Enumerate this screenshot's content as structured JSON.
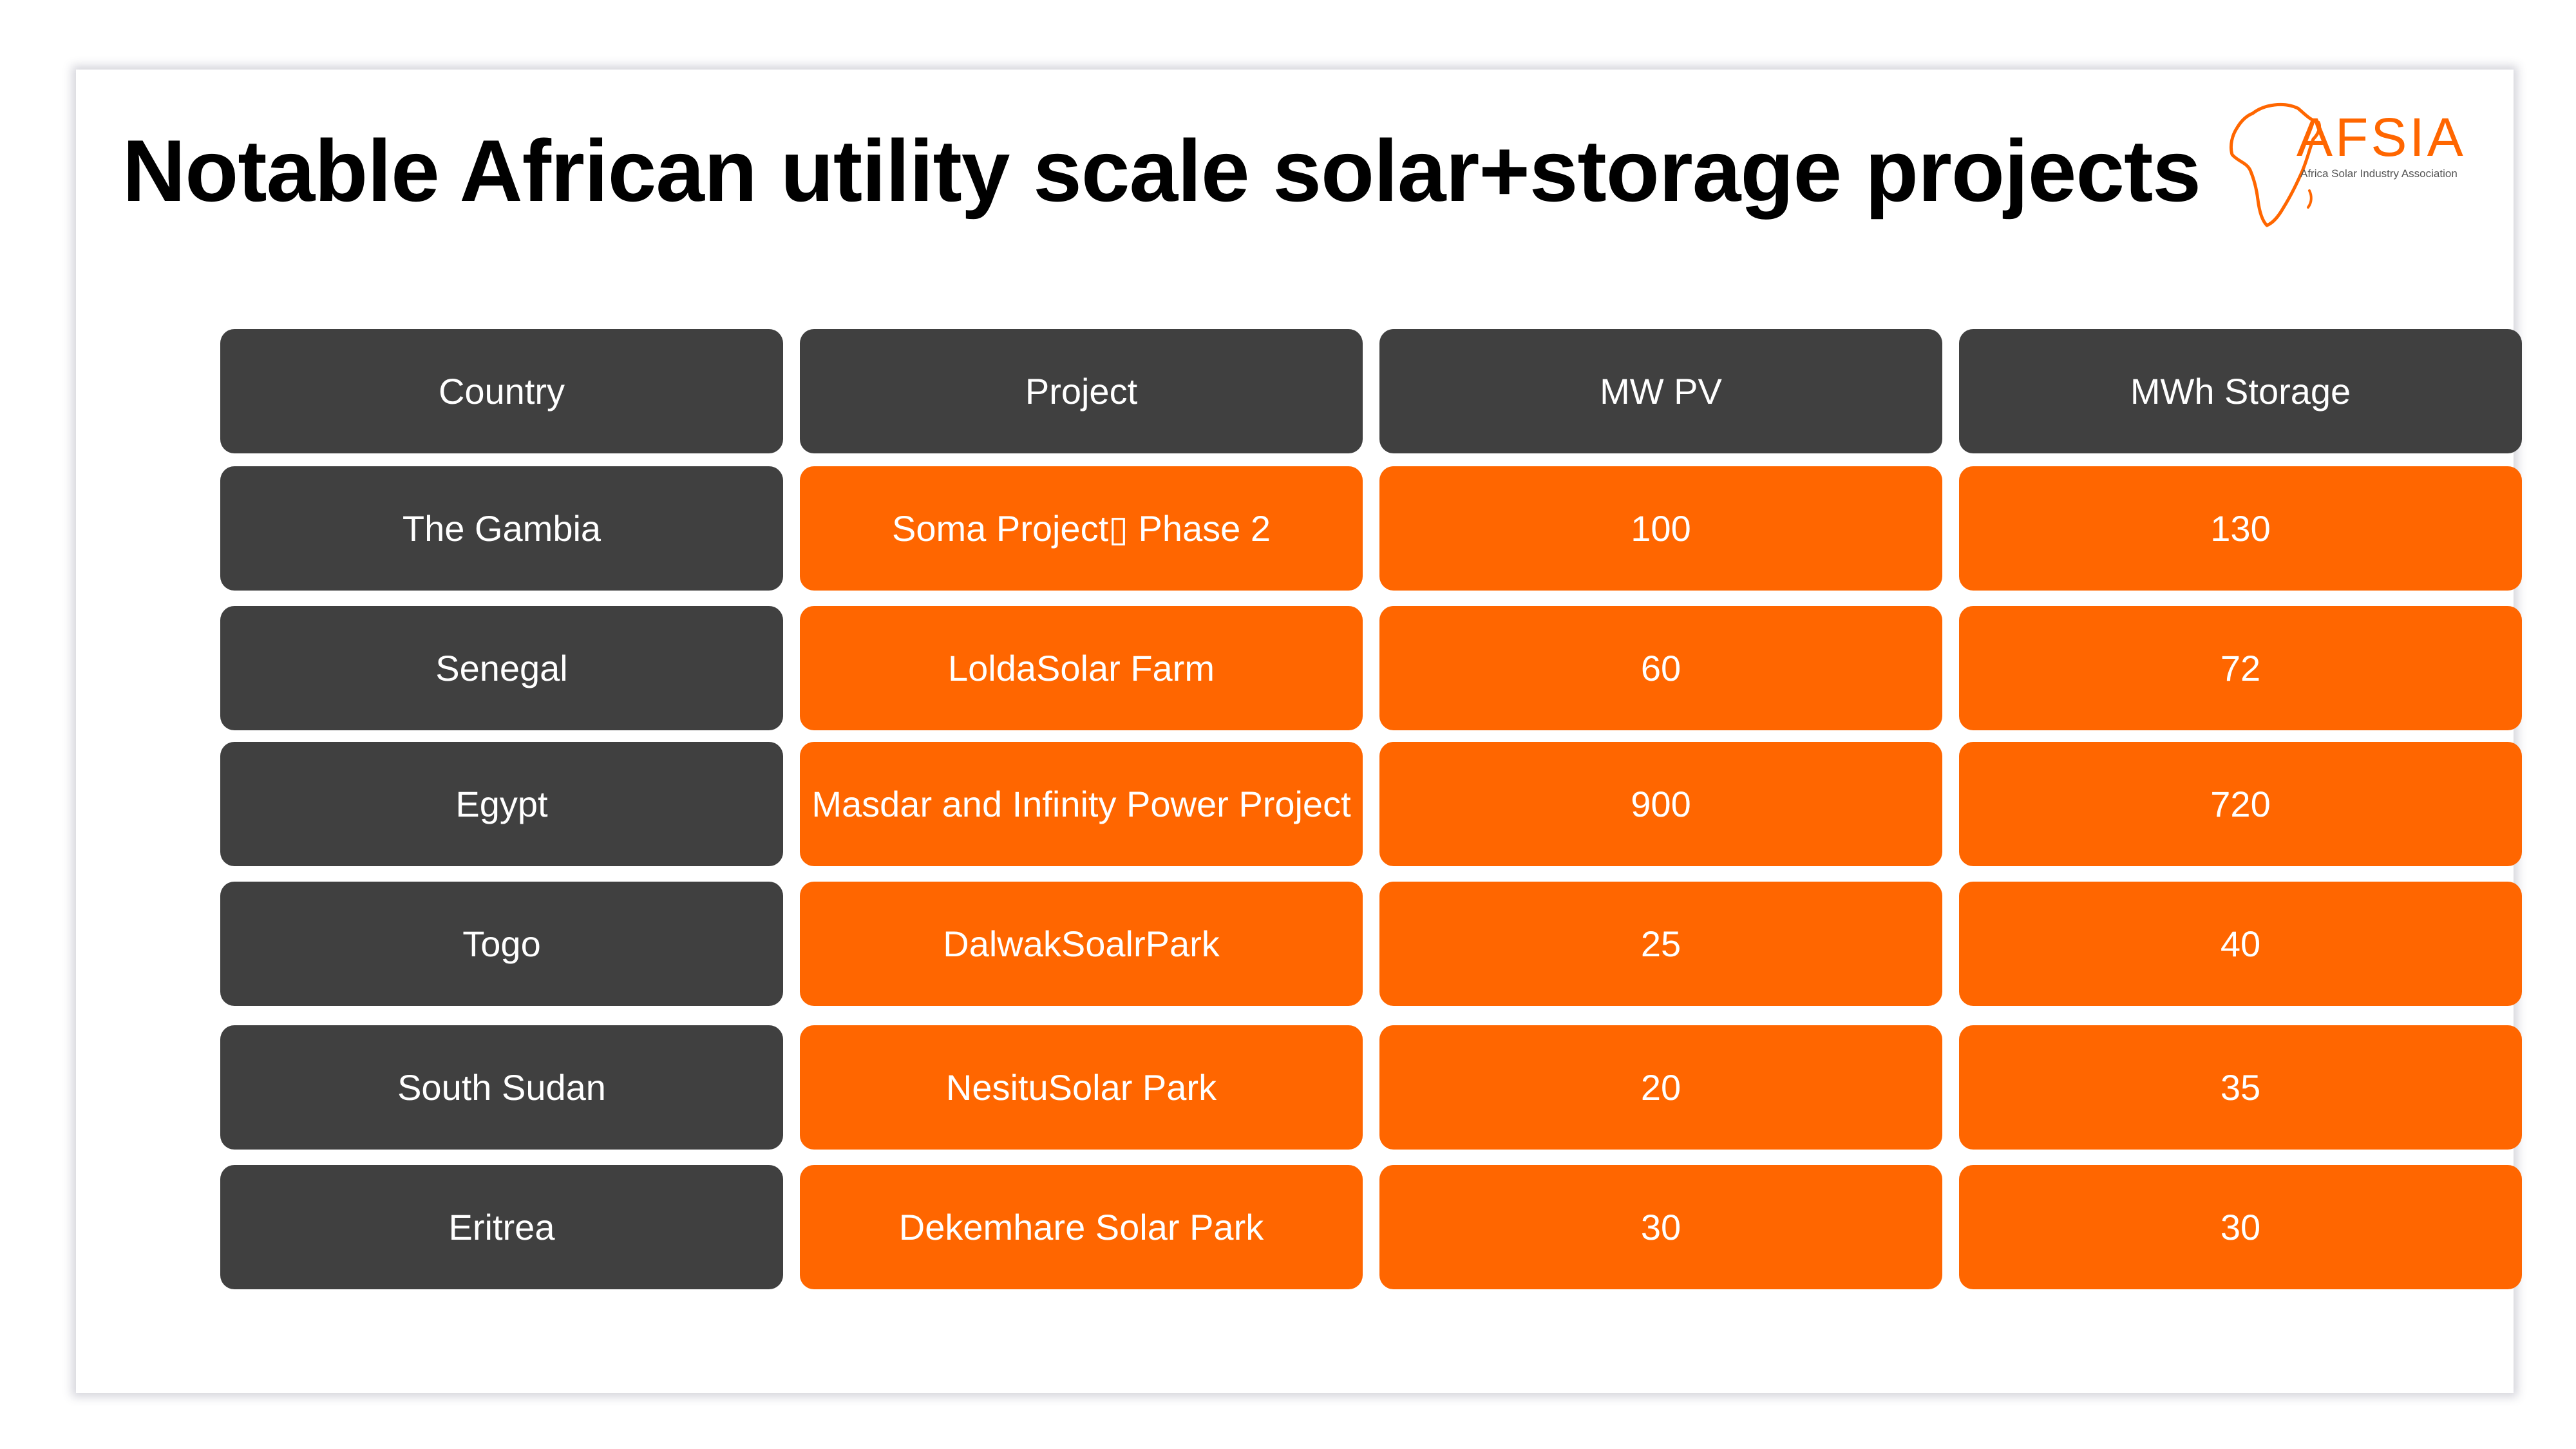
{
  "slide": {
    "title": "Notable African utility scale solar+storage projects",
    "logo": {
      "name": "AFSIA",
      "subtitle": "Africa Solar Industry Association",
      "icon": "africa-outline-icon"
    }
  },
  "table": {
    "headers": [
      "Country",
      "Project",
      "MW PV",
      "MWh Storage"
    ],
    "rows": [
      [
        "The Gambia",
        "Soma Project▯ Phase 2",
        "100",
        "130"
      ],
      [
        "Senegal",
        "LoldaSolar Farm",
        "60",
        "72"
      ],
      [
        "Egypt",
        "Masdar and Infinity Power Project",
        "900",
        "720"
      ],
      [
        "Togo",
        "DalwakSoalrPark",
        "25",
        "40"
      ],
      [
        "South Sudan",
        "NesituSolar Park",
        "20",
        "35"
      ],
      [
        "Eritrea",
        "Dekemhare Solar Park",
        "30",
        "30"
      ]
    ]
  },
  "colors": {
    "header_bg": "#404040",
    "country_bg": "#404040",
    "data_bg": "#ff6600",
    "accent": "#ff6600"
  }
}
